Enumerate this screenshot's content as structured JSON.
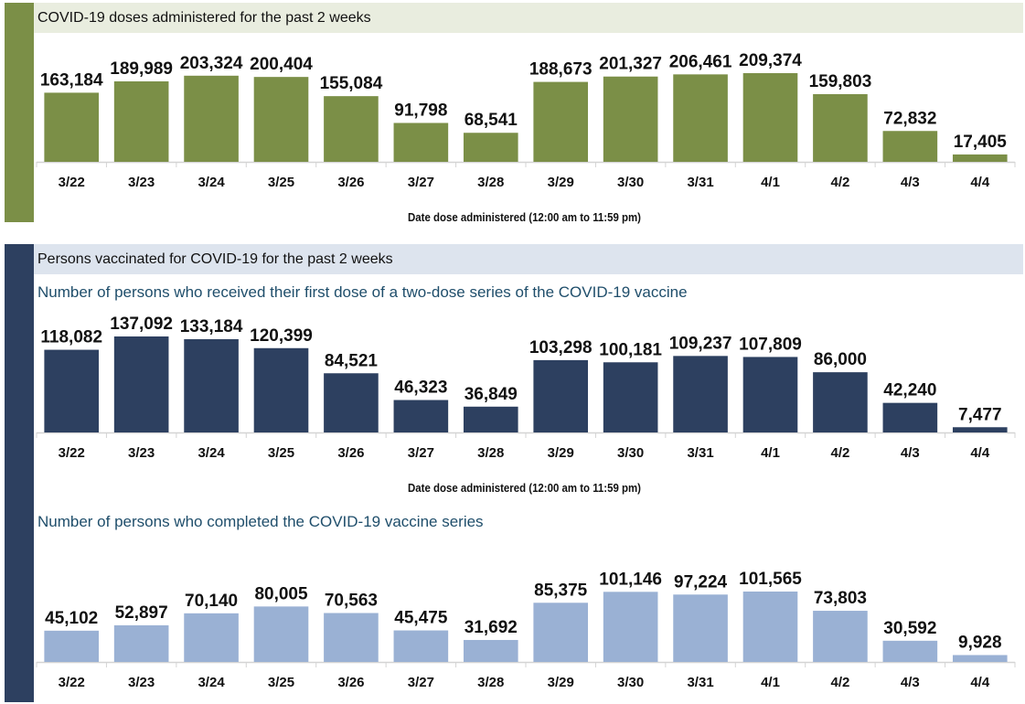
{
  "panels": {
    "doses": {
      "title": "COVID-19 doses administered for the past 2 weeks",
      "xlabel": "Date dose administered (12:00 am to 11:59 pm)",
      "accent": "#7b8f47",
      "band_color": "#e9eddf"
    },
    "persons": {
      "title": "Persons vaccinated for COVID-19 for the past 2 weeks",
      "accent": "#2d4060",
      "band_color": "#dde4ee",
      "first_dose_subtitle": "Number of persons who received their first dose of a two-dose series of the COVID-19 vaccine",
      "first_dose_xlabel": "Date dose administered (12:00 am to 11:59 pm)",
      "completed_subtitle": "Number of persons who completed the COVID-19 vaccine series"
    }
  },
  "chart_data": [
    {
      "type": "bar",
      "title": "COVID-19 doses administered for the past 2 weeks",
      "xlabel": "Date dose administered (12:00 am to 11:59 pm)",
      "ylabel": "",
      "color": "#7b8f47",
      "categories": [
        "3/22",
        "3/23",
        "3/24",
        "3/25",
        "3/26",
        "3/27",
        "3/28",
        "3/29",
        "3/30",
        "3/31",
        "4/1",
        "4/2",
        "4/3",
        "4/4"
      ],
      "values": [
        163184,
        189989,
        203324,
        200404,
        155084,
        91798,
        68541,
        188673,
        201327,
        206461,
        209374,
        159803,
        72832,
        17405
      ],
      "labels": [
        "163,184",
        "189,989",
        "203,324",
        "200,404",
        "155,084",
        "91,798",
        "68,541",
        "188,673",
        "201,327",
        "206,461",
        "209,374",
        "159,803",
        "72,832",
        "17,405"
      ],
      "grid": false,
      "legend": "none"
    },
    {
      "type": "bar",
      "title": "Number of persons who received their first dose of a two-dose series of the COVID-19 vaccine",
      "xlabel": "Date dose administered (12:00 am to 11:59 pm)",
      "ylabel": "",
      "color": "#2d4060",
      "categories": [
        "3/22",
        "3/23",
        "3/24",
        "3/25",
        "3/26",
        "3/27",
        "3/28",
        "3/29",
        "3/30",
        "3/31",
        "4/1",
        "4/2",
        "4/3",
        "4/4"
      ],
      "values": [
        118082,
        137092,
        133184,
        120399,
        84521,
        46323,
        36849,
        103298,
        100181,
        109237,
        107809,
        86000,
        42240,
        7477
      ],
      "labels": [
        "118,082",
        "137,092",
        "133,184",
        "120,399",
        "84,521",
        "46,323",
        "36,849",
        "103,298",
        "100,181",
        "109,237",
        "107,809",
        "86,000",
        "42,240",
        "7,477"
      ],
      "grid": false,
      "legend": "none"
    },
    {
      "type": "bar",
      "title": "Number of persons who completed the COVID-19 vaccine series",
      "xlabel": "",
      "ylabel": "",
      "color": "#9ab1d4",
      "categories": [
        "3/22",
        "3/23",
        "3/24",
        "3/25",
        "3/26",
        "3/27",
        "3/28",
        "3/29",
        "3/30",
        "3/31",
        "4/1",
        "4/2",
        "4/3",
        "4/4"
      ],
      "values": [
        45102,
        52897,
        70140,
        80005,
        70563,
        45475,
        31692,
        85375,
        101146,
        97224,
        101565,
        73803,
        30592,
        9928
      ],
      "labels": [
        "45,102",
        "52,897",
        "70,140",
        "80,005",
        "70,563",
        "45,475",
        "31,692",
        "85,375",
        "101,146",
        "97,224",
        "101,565",
        "73,803",
        "30,592",
        "9,928"
      ],
      "grid": false,
      "legend": "none"
    }
  ]
}
